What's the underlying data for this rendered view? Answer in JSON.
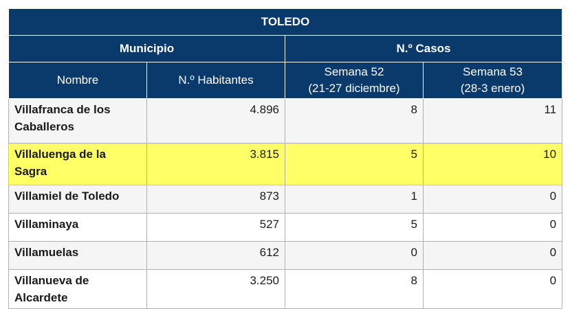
{
  "table": {
    "title": "TOLEDO",
    "group_headers": [
      "Municipio",
      "N.º Casos"
    ],
    "col_headers": {
      "nombre": "Nombre",
      "habitantes": "N.º Habitantes",
      "semana52_a": "Semana 52",
      "semana52_b": "(21-27 diciembre)",
      "semana53_a": "Semana 53",
      "semana53_b": "(28-3 enero)"
    },
    "rows": [
      {
        "nombre": "Villafranca de los Caballeros",
        "habitantes": "4.896",
        "s52": "8",
        "s53": "11",
        "highlighted": false
      },
      {
        "nombre": "Villaluenga de la Sagra",
        "habitantes": "3.815",
        "s52": "5",
        "s53": "10",
        "highlighted": true
      },
      {
        "nombre": "Villamiel de Toledo",
        "habitantes": "873",
        "s52": "1",
        "s53": "0",
        "highlighted": false
      },
      {
        "nombre": "Villaminaya",
        "habitantes": "527",
        "s52": "5",
        "s53": "0",
        "highlighted": false
      },
      {
        "nombre": "Villamuelas",
        "habitantes": "612",
        "s52": "0",
        "s53": "0",
        "highlighted": false
      },
      {
        "nombre": "Villanueva de Alcardete",
        "habitantes": "3.250",
        "s52": "8",
        "s53": "0",
        "highlighted": false
      }
    ]
  },
  "colors": {
    "header_bg": "#0a3a6b",
    "highlight": "#ffff66"
  }
}
